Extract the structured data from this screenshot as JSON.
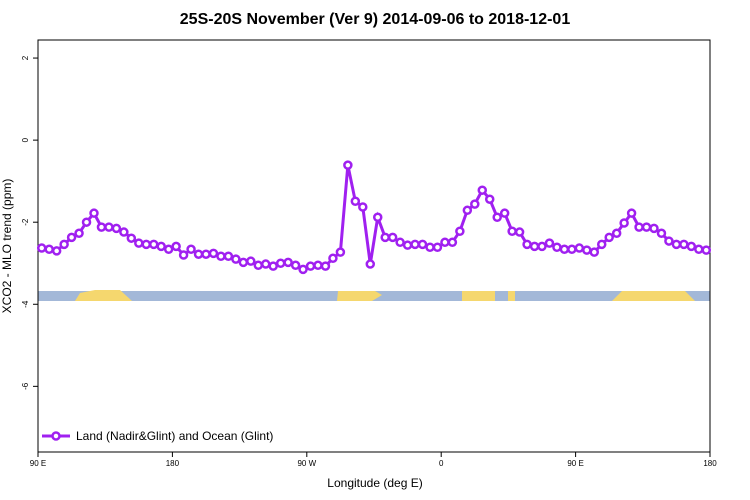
{
  "chart_data": {
    "type": "line",
    "title": "25S-20S November (Ver 9)   2014-09-06 to 2018-12-01",
    "x_label": "Longitude (deg E)",
    "y_label": "XCO2 - MLO trend (ppm)",
    "xlim": [
      90,
      540
    ],
    "xticks": [
      {
        "value": 90,
        "label": "90 E"
      },
      180,
      {
        "value": 270,
        "label": "90 W"
      },
      {
        "value": 360,
        "label": "0"
      },
      {
        "value": 450,
        "label": "90 E"
      },
      {
        "value": 540,
        "label": "180"
      }
    ],
    "ylim": [
      -7.6,
      2.44
    ],
    "yticks": [
      2,
      0,
      -2,
      -4,
      -6
    ],
    "legend_position": "bottom-left",
    "x": [
      92.5,
      97.5,
      102.5,
      107.5,
      112.5,
      117.5,
      122.5,
      127.5,
      132.5,
      137.5,
      142.5,
      147.5,
      152.5,
      157.5,
      162.5,
      167.5,
      172.5,
      177.5,
      182.5,
      187.5,
      192.5,
      197.5,
      202.5,
      207.5,
      212.5,
      217.5,
      222.5,
      227.5,
      232.5,
      237.5,
      242.5,
      247.5,
      252.5,
      257.5,
      262.5,
      267.5,
      272.5,
      277.5,
      282.5,
      287.5,
      292.5,
      297.5,
      302.5,
      307.5,
      312.5,
      317.5,
      322.5,
      327.5,
      332.5,
      337.5,
      342.5,
      347.5,
      352.5,
      357.5,
      362.5,
      367.5,
      372.5,
      377.5,
      382.5,
      387.5,
      392.5,
      397.5,
      402.5,
      407.5,
      412.5,
      417.5,
      422.5,
      427.5,
      432.5,
      437.5,
      442.5,
      447.5,
      452.5,
      457.5,
      462.5,
      467.5,
      472.5,
      477.5,
      482.5,
      487.5,
      492.5,
      497.5,
      502.5,
      507.5,
      512.5,
      517.5,
      522.5,
      527.5,
      532.5,
      537.5
    ],
    "series": [
      {
        "name": "Land (Nadir&Glint) and Ocean (Glint)",
        "color": "#a020f0",
        "values": [
          -2.63,
          -2.66,
          -2.7,
          -2.54,
          -2.37,
          -2.27,
          -2.0,
          -1.78,
          -2.12,
          -2.12,
          -2.15,
          -2.24,
          -2.39,
          -2.51,
          -2.54,
          -2.54,
          -2.59,
          -2.66,
          -2.59,
          -2.8,
          -2.66,
          -2.78,
          -2.78,
          -2.76,
          -2.83,
          -2.83,
          -2.9,
          -2.98,
          -2.95,
          -3.05,
          -3.02,
          -3.07,
          -3.0,
          -2.98,
          -3.05,
          -3.15,
          -3.07,
          -3.05,
          -3.07,
          -2.88,
          -2.73,
          -0.61,
          -1.49,
          -1.63,
          -3.02,
          -1.88,
          -2.37,
          -2.37,
          -2.49,
          -2.56,
          -2.54,
          -2.54,
          -2.61,
          -2.61,
          -2.49,
          -2.49,
          -2.22,
          -1.71,
          -1.56,
          -1.22,
          -1.44,
          -1.88,
          -1.78,
          -2.22,
          -2.24,
          -2.54,
          -2.59,
          -2.59,
          -2.51,
          -2.61,
          -2.66,
          -2.66,
          -2.63,
          -2.68,
          -2.73,
          -2.54,
          -2.37,
          -2.27,
          -2.02,
          -1.78,
          -2.12,
          -2.12,
          -2.15,
          -2.27,
          -2.46,
          -2.54,
          -2.54,
          -2.59,
          -2.66,
          -2.68
        ]
      }
    ]
  }
}
